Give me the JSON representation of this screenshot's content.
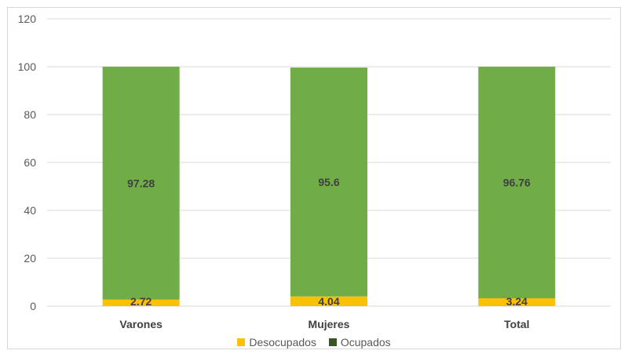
{
  "chart_data": {
    "type": "bar",
    "stacked": true,
    "categories": [
      "Varones",
      "Mujeres",
      "Total"
    ],
    "series": [
      {
        "name": "Desocupados",
        "values": [
          2.72,
          4.04,
          3.24
        ],
        "color": "#ffc000"
      },
      {
        "name": "Ocupados",
        "values": [
          97.28,
          95.6,
          96.76
        ],
        "color": "#70ad47",
        "legend_color": "#375623"
      }
    ],
    "ylim": [
      0,
      120
    ],
    "yticks": [
      0,
      20,
      40,
      60,
      80,
      100,
      120
    ],
    "grid": true,
    "legend": "bottom"
  }
}
